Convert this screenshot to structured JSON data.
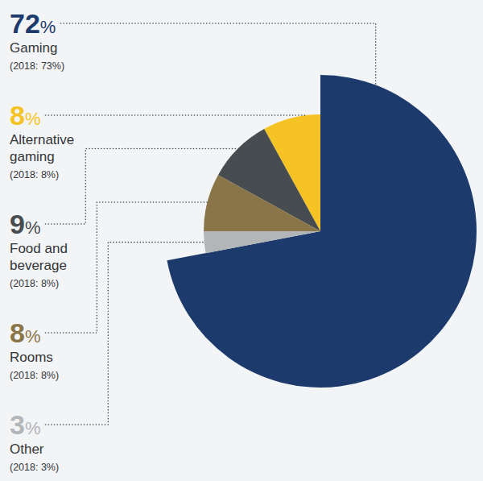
{
  "chart_data": {
    "type": "pie",
    "categories": [
      "Gaming",
      "Alternative gaming",
      "Food and beverage",
      "Rooms",
      "Other"
    ],
    "values": [
      72,
      8,
      9,
      8,
      3
    ],
    "value_labels": [
      "72%",
      "8%",
      "9%",
      "8%",
      "3%"
    ],
    "prior_year_labels": [
      "(2018: 73%)",
      "(2018: 8%)",
      "(2018: 8%)",
      "(2018: 8%)",
      "(2018: 3%)"
    ],
    "colors": [
      "#1d3a6c",
      "#f5c424",
      "#474c51",
      "#8a7548",
      "#b3b6b9"
    ],
    "data_labels": true
  }
}
